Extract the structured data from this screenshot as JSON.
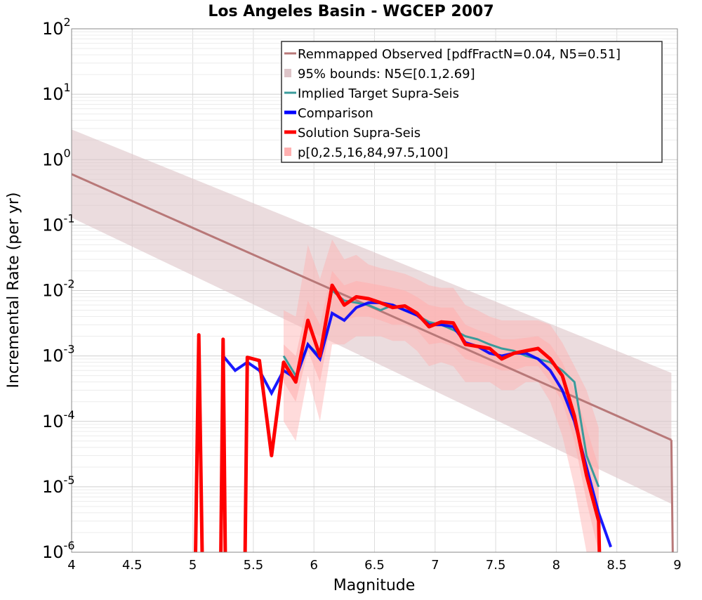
{
  "chart_data": {
    "type": "line",
    "title": "Los Angeles Basin - WGCEP 2007",
    "xlabel": "Magnitude",
    "ylabel": "Incremental Rate (per yr)",
    "xlim": [
      4,
      9
    ],
    "ylim": [
      1e-06,
      100
    ],
    "yscale": "log",
    "grid": true,
    "legend_position": "top-right",
    "x_ticks": [
      "4",
      "4.5",
      "5",
      "5.5",
      "6",
      "6.5",
      "7",
      "7.5",
      "8",
      "8.5",
      "9"
    ],
    "y_tick_exponents": [
      "-6",
      "-5",
      "-4",
      "-3",
      "-2",
      "-1",
      "0",
      "1",
      "2"
    ],
    "colors": {
      "observed": "#b87878",
      "observed_band": "#ddc4c8",
      "implied": "#3a9b9b",
      "comparison": "#0000ff",
      "solution": "#ff0000",
      "solution_band": "#ffb0b0"
    },
    "series": [
      {
        "name": "Remmapped Observed [pdfFractN=0.04, N5=0.51]",
        "x": [
          4.0,
          8.95
        ],
        "y": [
          0.6,
          5.2e-05
        ]
      },
      {
        "name": "95% bounds: N5∈[0.1,2.69]",
        "x": [
          4.0,
          8.95
        ],
        "lower": [
          0.13,
          5.5e-06
        ],
        "upper": [
          2.9,
          0.00055
        ]
      },
      {
        "name": "Implied Target Supra-Seis",
        "x": [
          5.75,
          5.85,
          5.95,
          6.05,
          6.15,
          6.25,
          6.35,
          6.45,
          6.55,
          6.65,
          6.75,
          6.85,
          6.95,
          7.05,
          7.15,
          7.25,
          7.35,
          7.45,
          7.55,
          7.65,
          7.75,
          7.85,
          7.95,
          8.05,
          8.15,
          8.25,
          8.35
        ],
        "y": [
          0.001,
          0.0005,
          0.0015,
          0.001,
          0.01,
          0.007,
          0.0065,
          0.006,
          0.005,
          0.006,
          0.005,
          0.0042,
          0.0033,
          0.003,
          0.0025,
          0.002,
          0.0018,
          0.0015,
          0.0013,
          0.0012,
          0.001,
          0.0009,
          0.0008,
          0.0006,
          0.0004,
          3e-05,
          1e-05
        ]
      },
      {
        "name": "Comparison",
        "x": [
          5.25,
          5.35,
          5.45,
          5.55,
          5.65,
          5.75,
          5.85,
          5.95,
          6.05,
          6.15,
          6.25,
          6.35,
          6.45,
          6.55,
          6.65,
          6.75,
          6.85,
          6.95,
          7.05,
          7.15,
          7.25,
          7.35,
          7.45,
          7.55,
          7.65,
          7.75,
          7.85,
          7.95,
          8.05,
          8.15,
          8.25,
          8.35,
          8.45
        ],
        "y": [
          0.001,
          0.0006,
          0.0008,
          0.0006,
          0.00027,
          0.0006,
          0.00045,
          0.0015,
          0.0009,
          0.0045,
          0.0035,
          0.0055,
          0.0065,
          0.0065,
          0.006,
          0.005,
          0.0042,
          0.003,
          0.003,
          0.0028,
          0.0016,
          0.0014,
          0.0011,
          0.001,
          0.0011,
          0.0011,
          0.0009,
          0.0006,
          0.0003,
          0.0001,
          2e-05,
          4e-06,
          1.2e-06
        ]
      },
      {
        "name": "Solution Supra-Seis",
        "x": [
          5.02,
          5.05,
          5.08,
          5.23,
          5.25,
          5.27,
          5.43,
          5.45,
          5.55,
          5.65,
          5.75,
          5.85,
          5.95,
          6.05,
          6.15,
          6.25,
          6.35,
          6.45,
          6.55,
          6.65,
          6.75,
          6.85,
          6.95,
          7.05,
          7.15,
          7.25,
          7.35,
          7.45,
          7.55,
          7.65,
          7.75,
          7.85,
          7.95,
          8.05,
          8.15,
          8.25,
          8.35,
          8.36
        ],
        "y": [
          1e-07,
          0.0021,
          1e-07,
          1e-07,
          0.0018,
          1e-07,
          1e-07,
          0.00095,
          0.00085,
          3e-05,
          0.0008,
          0.0004,
          0.0035,
          0.001,
          0.012,
          0.006,
          0.008,
          0.0075,
          0.0065,
          0.0055,
          0.0058,
          0.0045,
          0.0028,
          0.0033,
          0.0032,
          0.0015,
          0.0014,
          0.0013,
          0.0009,
          0.0011,
          0.0012,
          0.0013,
          0.0009,
          0.0005,
          0.00012,
          1.5e-05,
          3e-06,
          1e-07
        ]
      },
      {
        "name": "p[0,2.5,16,84,97.5,100]",
        "x": [
          5.75,
          5.85,
          5.95,
          6.05,
          6.15,
          6.25,
          6.35,
          6.45,
          6.55,
          6.65,
          6.75,
          6.85,
          6.95,
          7.05,
          7.15,
          7.25,
          7.35,
          7.45,
          7.55,
          7.65,
          7.75,
          7.85,
          7.95,
          8.05,
          8.15,
          8.25,
          8.35
        ],
        "p16": [
          0.0004,
          0.0002,
          0.0012,
          0.0004,
          0.004,
          0.0035,
          0.004,
          0.004,
          0.0035,
          0.003,
          0.003,
          0.0025,
          0.0015,
          0.0016,
          0.0014,
          0.0009,
          0.0008,
          0.0007,
          0.0006,
          0.0006,
          0.0007,
          0.0007,
          0.0004,
          0.0002,
          5e-05,
          6e-06,
          1e-06
        ],
        "p84": [
          0.0015,
          0.001,
          0.007,
          0.003,
          0.02,
          0.012,
          0.014,
          0.013,
          0.012,
          0.011,
          0.01,
          0.008,
          0.006,
          0.0055,
          0.0055,
          0.003,
          0.0025,
          0.0022,
          0.0018,
          0.0018,
          0.0019,
          0.002,
          0.0015,
          0.0008,
          0.0003,
          8e-05,
          2e-05
        ],
        "p2_5": [
          0.0001,
          5e-05,
          0.0005,
          0.0001,
          0.0015,
          0.0015,
          0.002,
          0.002,
          0.002,
          0.0017,
          0.0017,
          0.0012,
          0.0007,
          0.0008,
          0.0007,
          0.0004,
          0.0004,
          0.0004,
          0.0003,
          0.0003,
          0.0004,
          0.0004,
          0.0002,
          6e-05,
          1e-05,
          1e-06,
          1e-07
        ],
        "p97_5": [
          0.005,
          0.004,
          0.05,
          0.015,
          0.06,
          0.03,
          0.035,
          0.025,
          0.022,
          0.02,
          0.018,
          0.015,
          0.012,
          0.011,
          0.011,
          0.006,
          0.005,
          0.004,
          0.0035,
          0.0035,
          0.0035,
          0.0035,
          0.003,
          0.0016,
          0.0007,
          0.0003,
          8e-05
        ]
      }
    ]
  }
}
